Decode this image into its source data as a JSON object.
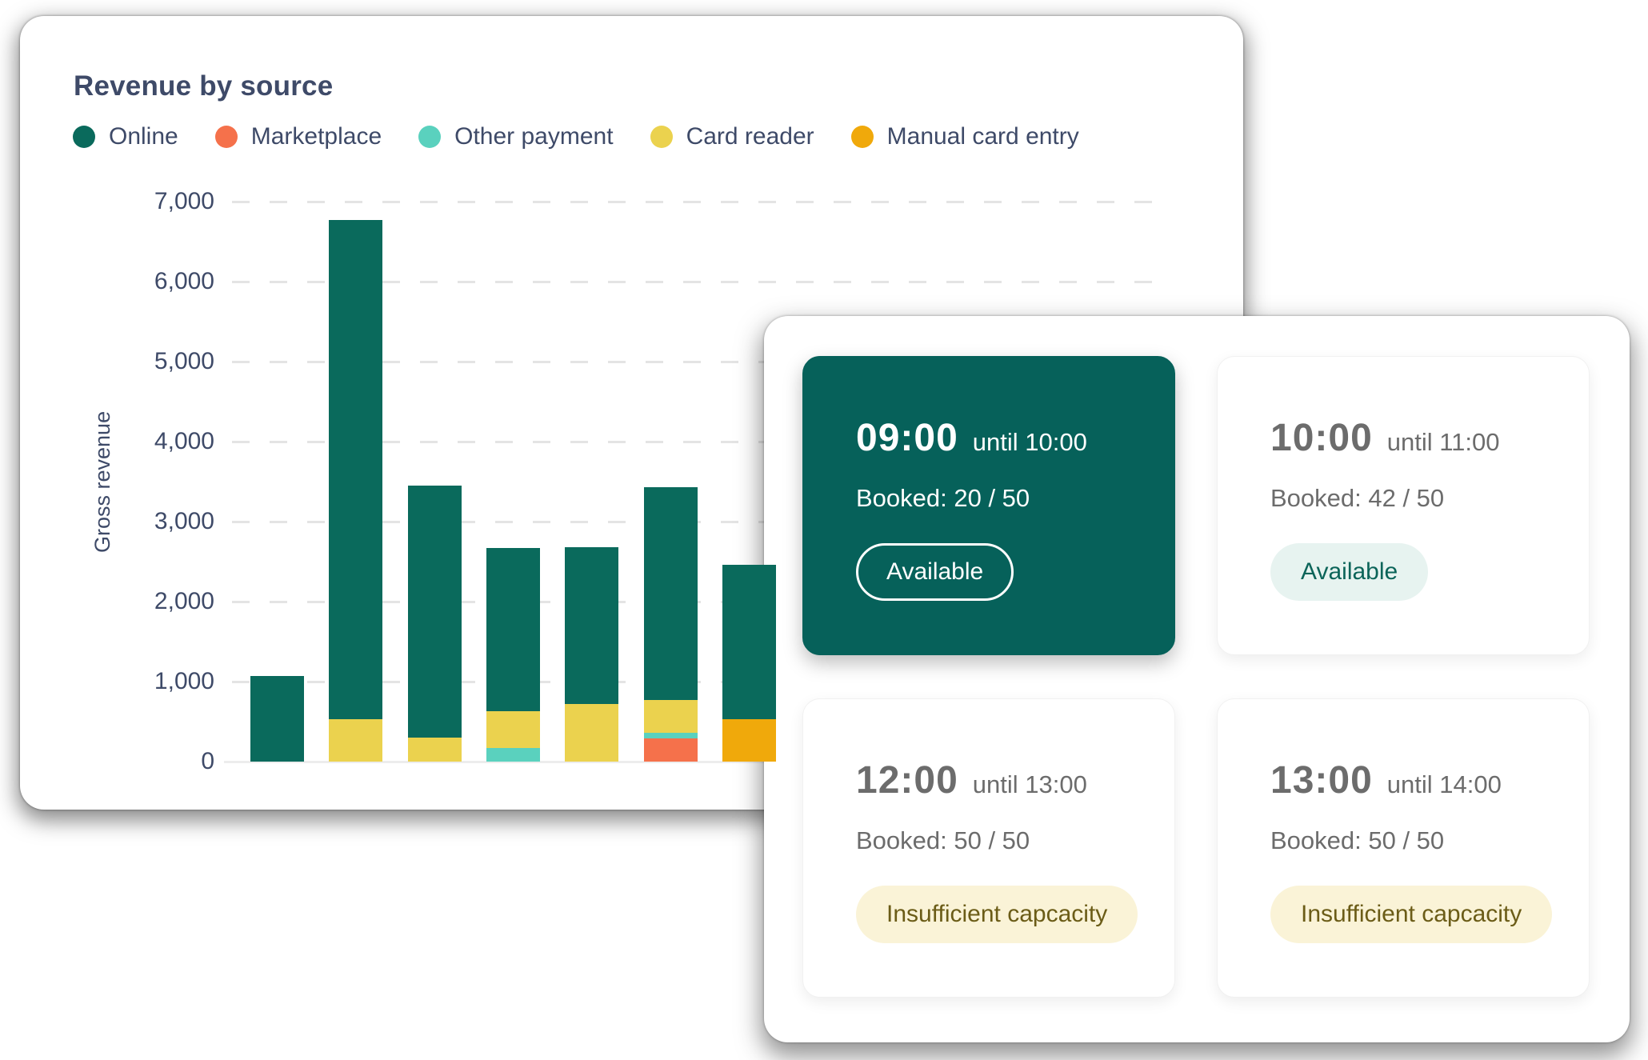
{
  "revenue_card": {
    "title": "Revenue by source",
    "legend": [
      {
        "label": "Online",
        "color": "#0A6A5C"
      },
      {
        "label": "Marketplace",
        "color": "#F5714B"
      },
      {
        "label": "Other payment",
        "color": "#5AD1BE"
      },
      {
        "label": "Card reader",
        "color": "#EBD24E"
      },
      {
        "label": "Manual card entry",
        "color": "#F0A90B"
      }
    ],
    "chart_data": {
      "type": "bar",
      "stacked": true,
      "title": "Revenue by source",
      "xlabel": "",
      "ylabel": "Gross revenue",
      "ylim": [
        0,
        7000
      ],
      "ytick_interval": 1000,
      "ytick_labels": [
        "0",
        "1,000",
        "2,000",
        "3,000",
        "4,000",
        "5,000",
        "6,000",
        "7,000"
      ],
      "grid": "horizontal-dashed",
      "legend_position": "top",
      "bars": [
        {
          "segments": [
            {
              "series": "Online",
              "value": 1070
            }
          ]
        },
        {
          "segments": [
            {
              "series": "Card reader",
              "value": 530
            },
            {
              "series": "Online",
              "value": 6240
            }
          ]
        },
        {
          "segments": [
            {
              "series": "Card reader",
              "value": 300
            },
            {
              "series": "Online",
              "value": 3150
            }
          ]
        },
        {
          "segments": [
            {
              "series": "Other payment",
              "value": 170
            },
            {
              "series": "Card reader",
              "value": 465
            },
            {
              "series": "Online",
              "value": 2035
            }
          ]
        },
        {
          "segments": [
            {
              "series": "Card reader",
              "value": 725
            },
            {
              "series": "Online",
              "value": 1955
            }
          ]
        },
        {
          "segments": [
            {
              "series": "Marketplace",
              "value": 295
            },
            {
              "series": "Other payment",
              "value": 70
            },
            {
              "series": "Card reader",
              "value": 405
            },
            {
              "series": "Online",
              "value": 2660
            }
          ]
        },
        {
          "segments": [
            {
              "series": "Manual card entry",
              "value": 530
            },
            {
              "series": "Online",
              "value": 1930
            }
          ]
        }
      ]
    }
  },
  "booking_panel": {
    "slots": [
      {
        "time": "09:00",
        "until": "until 10:00",
        "booked": "Booked: 20 / 50",
        "status": "Available",
        "state": "selected"
      },
      {
        "time": "10:00",
        "until": "until 11:00",
        "booked": "Booked: 42 / 50",
        "status": "Available",
        "state": "available"
      },
      {
        "time": "12:00",
        "until": "until 13:00",
        "booked": "Booked: 50 / 50",
        "status": "Insufficient capcacity",
        "state": "full"
      },
      {
        "time": "13:00",
        "until": "until 14:00",
        "booked": "Booked: 50 / 50",
        "status": "Insufficient capcacity",
        "state": "full"
      }
    ]
  },
  "colors": {
    "text_slate": "#3E4A68",
    "text_gray": "#6C6C6C",
    "selected_green": "#06615A",
    "mint_bg": "#E7F3F0",
    "mint_text": "#0B6459",
    "cream_bg": "#FAF3D7",
    "cream_text": "#6B5C17",
    "grid": "#E4E4E4",
    "baseline": "#EDEDED",
    "card_border": "#F1F1F1"
  }
}
